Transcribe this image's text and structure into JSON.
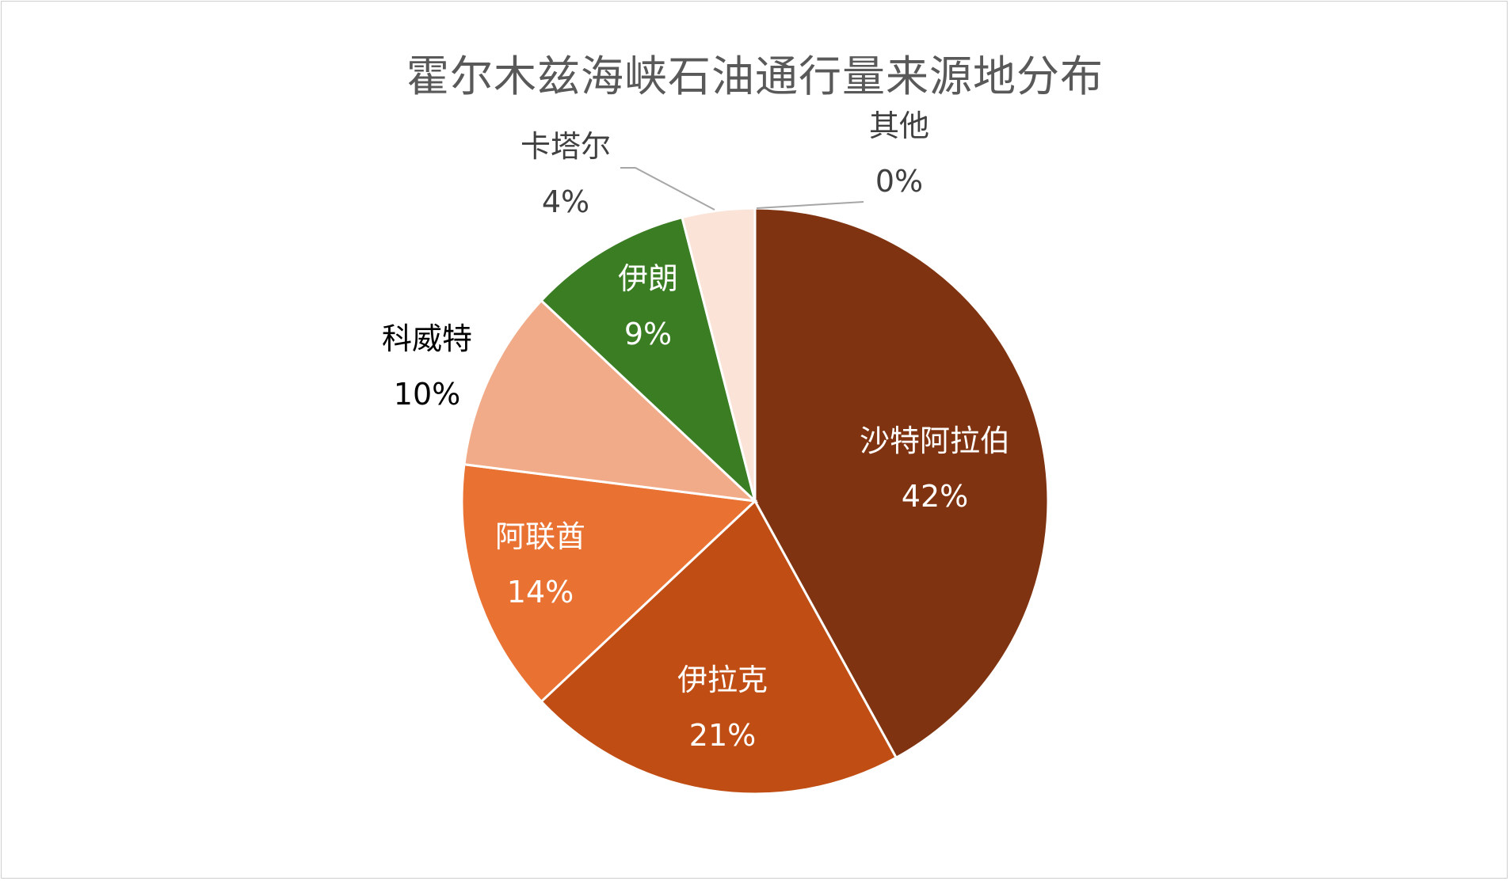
{
  "chart_data": {
    "type": "pie",
    "title": "霍尔木兹海峡石油通行量来源地分布",
    "slices": [
      {
        "label": "沙特阿拉伯",
        "value": 42,
        "display": "42%",
        "color": "#7f3310",
        "text_color": "#ffffff"
      },
      {
        "label": "伊拉克",
        "value": 21,
        "display": "21%",
        "color": "#c04e14",
        "text_color": "#ffffff"
      },
      {
        "label": "阿联酋",
        "value": 14,
        "display": "14%",
        "color": "#e97233",
        "text_color": "#ffffff"
      },
      {
        "label": "科威特",
        "value": 10,
        "display": "10%",
        "color": "#f1ab88",
        "text_color": "#000000"
      },
      {
        "label": "伊朗",
        "value": 9,
        "display": "9%",
        "color": "#3a7d23",
        "text_color": "#ffffff"
      },
      {
        "label": "卡塔尔",
        "value": 4,
        "display": "4%",
        "color": "#fbe3d7",
        "text_color": "#404040"
      },
      {
        "label": "其他",
        "value": 0.001,
        "display": "0%",
        "color": "#fbe3d7",
        "text_color": "#404040"
      }
    ]
  }
}
